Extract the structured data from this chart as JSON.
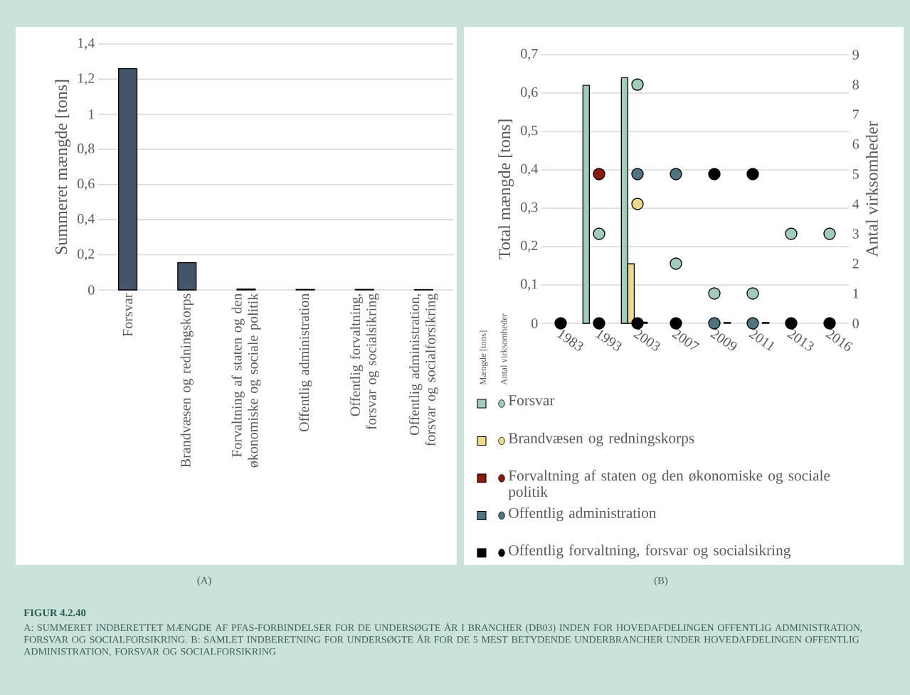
{
  "chart_data": [
    {
      "type": "bar",
      "ylabel": "Summeret mængde [tons]",
      "categories": [
        "Forsvar",
        "Brandvæsen og redningskorps",
        "Forvaltning af staten og den økonomiske og sociale politik",
        "Offentlig administration",
        "Offentlig forvaltning, forsvar og socialsikring",
        "Offentlig administration, forsvar og socialforsikring"
      ],
      "values": [
        1.26,
        0.155,
        0.005,
        0.003,
        0.003,
        0.002
      ],
      "color": "#44546a",
      "ylim": [
        0,
        1.4
      ],
      "yticks": [
        0,
        {
          "value": 0.2,
          "label": "0,2"
        },
        {
          "value": 0.4,
          "label": "0,4"
        },
        {
          "value": 0.6,
          "label": "0,6"
        },
        {
          "value": 0.8,
          "label": "0,8"
        },
        1,
        {
          "value": 1.2,
          "label": "1,2"
        },
        {
          "value": 1.4,
          "label": "1,4"
        }
      ],
      "grid": "y",
      "annotations": [
        "(A)"
      ]
    },
    {
      "type": "bar",
      "ylabel": "Total mængde [tons]",
      "y2label": "Antal virksomheder",
      "categories": [
        "1983",
        "1993",
        "2003",
        "2007",
        "2009",
        "2011",
        "2013",
        "2016"
      ],
      "series": [
        {
          "name": "Forsvar",
          "type": "bar",
          "color": "#9fcdb9",
          "values": [
            null,
            0.62,
            0.64,
            null,
            null,
            null,
            null,
            null
          ]
        },
        {
          "name": "Brandvæsen og redningskorps",
          "type": "bar",
          "color": "#ecd98a",
          "values": [
            null,
            null,
            0.155,
            null,
            null,
            null,
            null,
            null
          ]
        },
        {
          "name": "Forvaltning af staten og den økonomiske og sociale politik",
          "type": "bar",
          "color": "#8b1a0a",
          "values": [
            null,
            null,
            null,
            null,
            null,
            null,
            null,
            null
          ]
        },
        {
          "name": "Offentlig administration",
          "type": "bar",
          "color": "#4e7580",
          "values": [
            null,
            null,
            0.003,
            null,
            null,
            null,
            null,
            null
          ]
        },
        {
          "name": "Offentlig forvaltning, forsvar og socialsikring",
          "type": "bar",
          "color": "#000000",
          "values": [
            null,
            null,
            null,
            null,
            0.002,
            0.002,
            null,
            null
          ]
        },
        {
          "type": "scatter",
          "axis": "y2",
          "marker": "circle",
          "color": "#9fcdb9",
          "values": [
            null,
            3,
            8,
            2,
            1,
            1,
            3,
            3
          ]
        },
        {
          "type": "scatter",
          "axis": "y2",
          "marker": "circle",
          "color": "#ecd98a",
          "values": [
            null,
            null,
            4,
            null,
            null,
            null,
            null,
            null
          ]
        },
        {
          "type": "scatter",
          "axis": "y2",
          "marker": "circle",
          "color": "#8b1a0a",
          "values": [
            null,
            5,
            null,
            null,
            null,
            null,
            null,
            null
          ]
        },
        {
          "type": "scatter",
          "axis": "y2",
          "marker": "circle",
          "color": "#4e7580",
          "values": [
            null,
            null,
            5,
            5,
            0,
            0,
            null,
            null
          ]
        },
        {
          "type": "scatter",
          "axis": "y2",
          "marker": "circle",
          "color": "#000000",
          "values": [
            0,
            0,
            0,
            0,
            5,
            5,
            0,
            0
          ]
        }
      ],
      "ylim": [
        0,
        0.7
      ],
      "yticks": [
        0,
        {
          "value": 0.1,
          "label": "0,1"
        },
        {
          "value": 0.2,
          "label": "0,2"
        },
        {
          "value": 0.3,
          "label": "0,3"
        },
        {
          "value": 0.4,
          "label": "0,4"
        },
        {
          "value": 0.5,
          "label": "0,5"
        },
        {
          "value": 0.6,
          "label": "0,6"
        },
        {
          "value": 0.7,
          "label": "0,7"
        }
      ],
      "y2lim": [
        0,
        9
      ],
      "y2ticks": [
        0,
        1,
        2,
        3,
        4,
        5,
        6,
        7,
        8,
        9
      ],
      "grid": "y",
      "legend": "bottom",
      "annotations": [
        "(B)",
        "Mængde [tons]",
        "Antal virksomheder",
        "FIGUR 4.2.40",
        "A: SUMMERET INDBERETTET MÆNGDE AF PFAS-FORBINDELSER FOR DE UNDERSØGTE ÅR I BRANCHER (DB03) INDEN FOR HOVEDAFDELINGEN OFFENTLIG ADMINISTRATION, FORSVAR OG SOCIALFORSIKRING. B: SAMLET INDBERETNING FOR UNDERSØGTE ÅR FOR DE 5 MEST BETYDENDE UNDERBRANCHER UNDER HOVEDAFDELINGEN OFFENTLIG ADMINISTRATION, FORSVAR OG SOCIALFORSIKRING"
      ]
    }
  ]
}
